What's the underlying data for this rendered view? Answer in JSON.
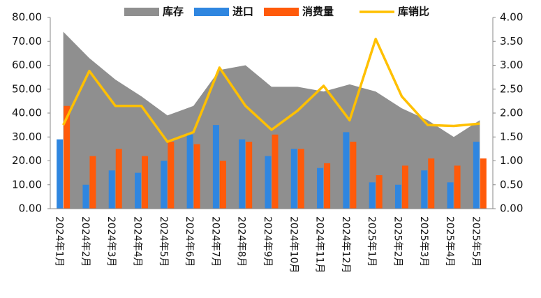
{
  "chart_data": {
    "type": "combo",
    "categories": [
      "2024年1月",
      "2024年2月",
      "2024年3月",
      "2024年4月",
      "2024年5月",
      "2024年6月",
      "2024年7月",
      "2024年8月",
      "2024年9月",
      "2024年10月",
      "2024年11月",
      "2024年12月",
      "2025年1月",
      "2025年2月",
      "2025年3月",
      "2025年4月",
      "2025年5月"
    ],
    "series": [
      {
        "name": "库存",
        "type": "area",
        "color": "#8f8f8f",
        "values": [
          74,
          63,
          54,
          47,
          39,
          43,
          58,
          60,
          51,
          51,
          49,
          52,
          49,
          42,
          37,
          30,
          37
        ]
      },
      {
        "name": "进口",
        "type": "bar",
        "color": "#2f86e0",
        "values": [
          29,
          10,
          16,
          15,
          20,
          31,
          35,
          29,
          22,
          25,
          17,
          32,
          11,
          10,
          16,
          11,
          28
        ]
      },
      {
        "name": "消费量",
        "type": "bar",
        "color": "#ff5a0a",
        "values": [
          43,
          22,
          25,
          22,
          28,
          27,
          20,
          28,
          31,
          25,
          19,
          28,
          14,
          18,
          21,
          18,
          21
        ]
      },
      {
        "name": "库销比",
        "type": "line",
        "axis": "y2",
        "color": "#ffc000",
        "values": [
          1.75,
          2.88,
          2.15,
          2.15,
          1.4,
          1.6,
          2.95,
          2.15,
          1.65,
          2.05,
          2.57,
          1.85,
          3.55,
          2.35,
          1.75,
          1.73,
          1.78
        ]
      }
    ],
    "ylim": [
      0,
      80
    ],
    "yticks": [
      {
        "value": 0,
        "label": "0.00"
      },
      {
        "value": 10,
        "label": "10.00"
      },
      {
        "value": 20,
        "label": "20.00"
      },
      {
        "value": 30,
        "label": "30.00"
      },
      {
        "value": 40,
        "label": "40.00"
      },
      {
        "value": 50,
        "label": "50.00"
      },
      {
        "value": 60,
        "label": "60.00"
      },
      {
        "value": 70,
        "label": "70.00"
      },
      {
        "value": 80,
        "label": "80.00"
      }
    ],
    "y2lim": [
      0,
      4
    ],
    "y2ticks": [
      {
        "value": 0,
        "label": "0.00"
      },
      {
        "value": 0.5,
        "label": "0.50"
      },
      {
        "value": 1,
        "label": "1.00"
      },
      {
        "value": 1.5,
        "label": "1.50"
      },
      {
        "value": 2,
        "label": "2.00"
      },
      {
        "value": 2.5,
        "label": "2.50"
      },
      {
        "value": 3,
        "label": "3.00"
      },
      {
        "value": 3.5,
        "label": "3.50"
      },
      {
        "value": 4,
        "label": "4.00"
      }
    ],
    "legend": "top"
  }
}
